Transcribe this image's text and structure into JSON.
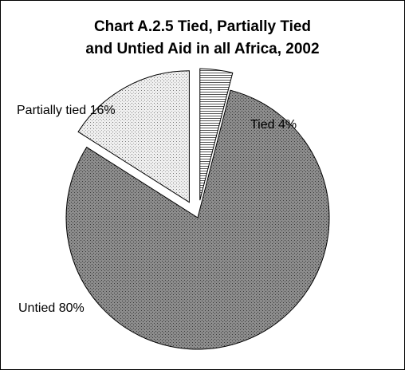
{
  "chart_data": {
    "type": "pie",
    "title": "Chart A.2.5 Tied, Partially Tied and Untied Aid in all Africa, 2002",
    "title_lines": [
      "Chart A.2.5 Tied, Partially Tied",
      "and Untied Aid in all Africa, 2002"
    ],
    "slices": [
      {
        "name": "Tied",
        "value": 4,
        "label": "Tied 4%",
        "pattern": "horizontal-lines",
        "exploded": true
      },
      {
        "name": "Untied",
        "value": 80,
        "label": "Untied 80%",
        "pattern": "dark-dots",
        "exploded": false
      },
      {
        "name": "Partially tied",
        "value": 16,
        "label": "Partially tied 16%",
        "pattern": "light-dots",
        "exploded": true
      }
    ],
    "start_angle": "12 o'clock",
    "direction": "clockwise",
    "legend": "none",
    "colors": {
      "untied_fill": "#8c8c8c",
      "partially_tied_fill": "#e6e6e6",
      "tied_fill": "#ffffff",
      "stroke": "#000000"
    }
  }
}
